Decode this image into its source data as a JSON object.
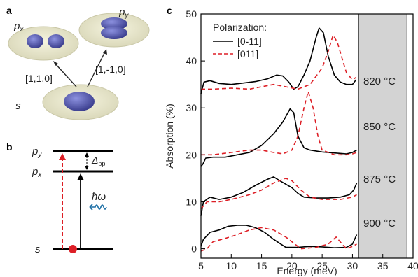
{
  "panel_a": {
    "letter": "a",
    "px_label": "p",
    "px_sub": "x",
    "py_label": "p",
    "py_sub": "y",
    "s_label": "s",
    "arrow1_label": "[1,1,0]",
    "arrow2_label": "[1,-1,0]",
    "orbital_color": "#5a5fb5",
    "disk_color": "#e9e8cf"
  },
  "panel_b": {
    "letter": "b",
    "py_label": "p",
    "py_sub": "y",
    "px_label": "p",
    "px_sub": "x",
    "s_label": "s",
    "delta_label": "Δ",
    "delta_sub": "pp",
    "hbar_omega": "ħω",
    "red_color": "#dd1f26",
    "wave_color": "#1d6fa5"
  },
  "panel_c": {
    "letter": "c",
    "legend_title": "Polarization:",
    "series_labels": [
      "[0-11]",
      "[011]"
    ],
    "temp_labels": [
      "820 °C",
      "850 °C",
      "875 °C",
      "900 °C"
    ],
    "shade_color": "#d3d3d3",
    "solid_color": "#000000",
    "dashed_color": "#dd1f26"
  },
  "chart_data": {
    "type": "line",
    "xlabel": "Energy (meV)",
    "ylabel": "Absorption (%)",
    "xlim": [
      5,
      40
    ],
    "ylim": [
      -2,
      50
    ],
    "xticks": [
      5,
      10,
      15,
      20,
      25,
      30,
      35,
      40
    ],
    "yticks": [
      0,
      10,
      20,
      30,
      40,
      50
    ],
    "shaded_region_x": [
      31,
      39
    ],
    "grid": false,
    "legend_position": "top-left",
    "series": [
      {
        "name": "[0-11]",
        "curve": "820 °C",
        "points": [
          [
            5,
            33
          ],
          [
            5.5,
            35.5
          ],
          [
            6.5,
            35.8
          ],
          [
            8,
            35.2
          ],
          [
            10,
            35
          ],
          [
            12,
            35.3
          ],
          [
            14,
            35.6
          ],
          [
            16,
            36.2
          ],
          [
            17.5,
            37
          ],
          [
            18.5,
            36.8
          ],
          [
            19.5,
            35.5
          ],
          [
            20.3,
            34
          ],
          [
            21,
            34.5
          ],
          [
            22,
            37
          ],
          [
            23,
            40
          ],
          [
            24,
            45
          ],
          [
            24.5,
            47
          ],
          [
            25.2,
            46
          ],
          [
            26,
            41
          ],
          [
            27,
            37
          ],
          [
            28,
            35.5
          ],
          [
            29,
            35
          ],
          [
            30,
            35
          ],
          [
            30.6,
            36
          ]
        ]
      },
      {
        "name": "[011]",
        "curve": "820 °C",
        "points": [
          [
            5,
            34
          ],
          [
            7,
            34
          ],
          [
            10,
            34.2
          ],
          [
            13,
            34
          ],
          [
            15,
            34.5
          ],
          [
            17,
            35
          ],
          [
            19,
            34.5
          ],
          [
            21,
            34
          ],
          [
            23,
            35
          ],
          [
            25,
            38.5
          ],
          [
            26,
            42
          ],
          [
            26.8,
            45.5
          ],
          [
            27.5,
            44
          ],
          [
            28.3,
            40.5
          ],
          [
            29,
            37.5
          ],
          [
            30,
            36
          ],
          [
            30.6,
            36.5
          ]
        ]
      },
      {
        "name": "[0-11]",
        "curve": "850 °C",
        "points": [
          [
            5,
            17.5
          ],
          [
            5.3,
            18
          ],
          [
            5.8,
            19.3
          ],
          [
            7,
            19.5
          ],
          [
            9,
            19.5
          ],
          [
            11,
            20
          ],
          [
            13,
            20.5
          ],
          [
            15,
            22
          ],
          [
            17,
            24.5
          ],
          [
            18.5,
            27
          ],
          [
            19.7,
            29.8
          ],
          [
            20.3,
            29
          ],
          [
            21,
            24
          ],
          [
            22,
            21.5
          ],
          [
            23,
            21
          ],
          [
            25,
            20.6
          ],
          [
            27,
            20.4
          ],
          [
            29,
            20.2
          ],
          [
            30,
            20.5
          ],
          [
            30.7,
            21
          ]
        ]
      },
      {
        "name": "[011]",
        "curve": "850 °C",
        "points": [
          [
            5,
            20
          ],
          [
            7,
            20
          ],
          [
            10,
            20.5
          ],
          [
            13,
            21
          ],
          [
            15,
            21
          ],
          [
            17,
            20.5
          ],
          [
            18.5,
            20.2
          ],
          [
            20,
            21
          ],
          [
            21,
            24
          ],
          [
            22,
            30
          ],
          [
            22.7,
            33.5
          ],
          [
            23.5,
            30
          ],
          [
            24.3,
            24
          ],
          [
            25,
            21
          ],
          [
            27,
            20
          ],
          [
            29,
            20
          ],
          [
            30,
            20.2
          ],
          [
            30.7,
            20.5
          ]
        ]
      },
      {
        "name": "[0-11]",
        "curve": "875 °C",
        "points": [
          [
            5,
            7
          ],
          [
            5.4,
            10
          ],
          [
            6.5,
            11
          ],
          [
            8,
            10.5
          ],
          [
            10,
            11
          ],
          [
            12,
            12
          ],
          [
            14,
            13.5
          ],
          [
            16,
            14.8
          ],
          [
            17,
            15.3
          ],
          [
            18,
            14.5
          ],
          [
            20,
            13
          ],
          [
            21,
            11.8
          ],
          [
            22,
            11
          ],
          [
            24,
            10.8
          ],
          [
            26,
            10.8
          ],
          [
            28,
            11
          ],
          [
            29.5,
            11.5
          ],
          [
            30.2,
            12.5
          ],
          [
            30.7,
            14
          ]
        ]
      },
      {
        "name": "[011]",
        "curve": "875 °C",
        "points": [
          [
            5,
            8.5
          ],
          [
            6,
            10
          ],
          [
            8,
            10
          ],
          [
            10,
            10.5
          ],
          [
            13,
            11.5
          ],
          [
            15,
            12.5
          ],
          [
            17,
            14
          ],
          [
            19,
            15
          ],
          [
            20,
            14.5
          ],
          [
            21.5,
            12.5
          ],
          [
            23,
            11
          ],
          [
            25,
            10.5
          ],
          [
            28,
            10.5
          ],
          [
            30,
            11
          ],
          [
            30.7,
            11.5
          ]
        ]
      },
      {
        "name": "[0-11]",
        "curve": "900 °C",
        "points": [
          [
            5,
            0.5
          ],
          [
            5.4,
            2
          ],
          [
            6.5,
            3.5
          ],
          [
            8,
            4
          ],
          [
            9.5,
            4.8
          ],
          [
            11,
            5
          ],
          [
            12.5,
            5
          ],
          [
            14,
            4.5
          ],
          [
            15.5,
            3.5
          ],
          [
            17,
            2
          ],
          [
            19,
            0.3
          ],
          [
            21,
            0.3
          ],
          [
            23,
            0.5
          ],
          [
            25,
            0.4
          ],
          [
            27,
            0.2
          ],
          [
            29,
            0.3
          ],
          [
            30,
            1
          ],
          [
            30.7,
            3
          ]
        ]
      },
      {
        "name": "[011]",
        "curve": "900 °C",
        "points": [
          [
            5,
            -0.5
          ],
          [
            6,
            0
          ],
          [
            7,
            1.5
          ],
          [
            9,
            2.2
          ],
          [
            11,
            3
          ],
          [
            13,
            4
          ],
          [
            15,
            4.5
          ],
          [
            17,
            4
          ],
          [
            19,
            2.5
          ],
          [
            20.5,
            1
          ],
          [
            21.5,
            0
          ],
          [
            24,
            0.3
          ],
          [
            26,
            1
          ],
          [
            27.3,
            2.5
          ],
          [
            28.3,
            1
          ],
          [
            29,
            0
          ],
          [
            30,
            0.5
          ],
          [
            30.7,
            1
          ]
        ]
      }
    ]
  }
}
